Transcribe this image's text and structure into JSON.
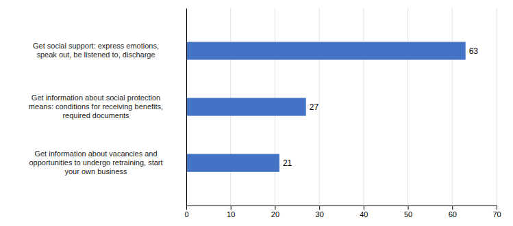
{
  "chart_data": {
    "type": "bar",
    "orientation": "horizontal",
    "categories": [
      "Get information about vacancies and\nopportunities to undergo retraining, start\nyour own business",
      "Get information about social protection\nmeans: conditions for receiving benefits,\nrequired documents",
      "Get social support: express emotions,\nspeak out, be listened to, discharge"
    ],
    "values": [
      21,
      27,
      63
    ],
    "color": "#4472C4",
    "xlim": [
      0,
      70
    ],
    "xticks": [
      0,
      10,
      20,
      30,
      40,
      50,
      60,
      70
    ],
    "grid": true,
    "data_labels": true
  }
}
